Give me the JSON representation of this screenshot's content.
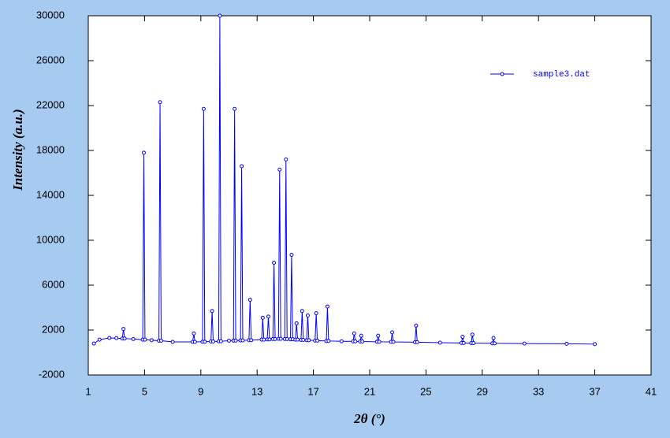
{
  "chart_data": {
    "type": "line",
    "x_label": "2θ (°)",
    "y_label": "Intensity (a.u.)",
    "x": [
      1.4,
      1.8,
      2.5,
      3.0,
      3.42,
      3.5,
      3.58,
      4.2,
      4.87,
      4.95,
      5.03,
      5.5,
      6.02,
      6.1,
      6.18,
      7.0,
      8.42,
      8.5,
      8.58,
      9.12,
      9.2,
      9.28,
      9.72,
      9.8,
      9.88,
      10.27,
      10.35,
      10.43,
      11.0,
      11.32,
      11.4,
      11.48,
      11.82,
      11.9,
      11.98,
      12.42,
      12.5,
      12.58,
      13.32,
      13.4,
      13.48,
      13.72,
      13.8,
      13.88,
      14.12,
      14.2,
      14.28,
      14.52,
      14.6,
      14.68,
      14.97,
      15.05,
      15.13,
      15.37,
      15.45,
      15.53,
      15.72,
      15.8,
      15.88,
      16.12,
      16.2,
      16.28,
      16.52,
      16.6,
      16.68,
      17.12,
      17.2,
      17.28,
      17.92,
      18.0,
      18.08,
      19.0,
      19.82,
      19.9,
      19.98,
      20.32,
      20.4,
      20.48,
      21.52,
      21.6,
      21.68,
      22.52,
      22.6,
      22.68,
      24.22,
      24.3,
      24.38,
      26.0,
      27.52,
      27.6,
      27.68,
      28.22,
      28.3,
      28.38,
      29.72,
      29.8,
      29.88,
      32.0,
      35.0,
      37.0
    ],
    "series": [
      {
        "name": "sample3.dat",
        "color": "#0000ff",
        "values": [
          800,
          1150,
          1300,
          1280,
          1250,
          2100,
          1250,
          1200,
          1150,
          17800,
          1150,
          1100,
          1050,
          22300,
          1050,
          950,
          950,
          1700,
          950,
          960,
          21700,
          960,
          980,
          3700,
          980,
          1000,
          30000,
          1000,
          1050,
          1060,
          21700,
          1060,
          1080,
          16600,
          1080,
          1100,
          4700,
          1100,
          1150,
          3100,
          1150,
          1170,
          3200,
          1170,
          1200,
          8000,
          1200,
          1220,
          16300,
          1220,
          1200,
          17200,
          1200,
          1180,
          8700,
          1180,
          1150,
          2600,
          1150,
          1120,
          3700,
          1120,
          1100,
          3300,
          1100,
          1060,
          3500,
          1060,
          1030,
          4100,
          1030,
          1000,
          990,
          1700,
          990,
          980,
          1500,
          980,
          960,
          1500,
          960,
          950,
          1800,
          950,
          920,
          2400,
          920,
          880,
          850,
          1400,
          850,
          840,
          1600,
          840,
          820,
          1300,
          820,
          800,
          780,
          750
        ]
      }
    ],
    "xlim": [
      1,
      41
    ],
    "xticks": [
      1,
      5,
      9,
      13,
      17,
      21,
      25,
      29,
      33,
      37,
      41
    ],
    "ylim": [
      -2000,
      30000
    ],
    "yticks": [
      -2000,
      2000,
      6000,
      10000,
      14000,
      18000,
      22000,
      26000,
      30000
    ],
    "legend": "upper-right",
    "markers": true
  }
}
